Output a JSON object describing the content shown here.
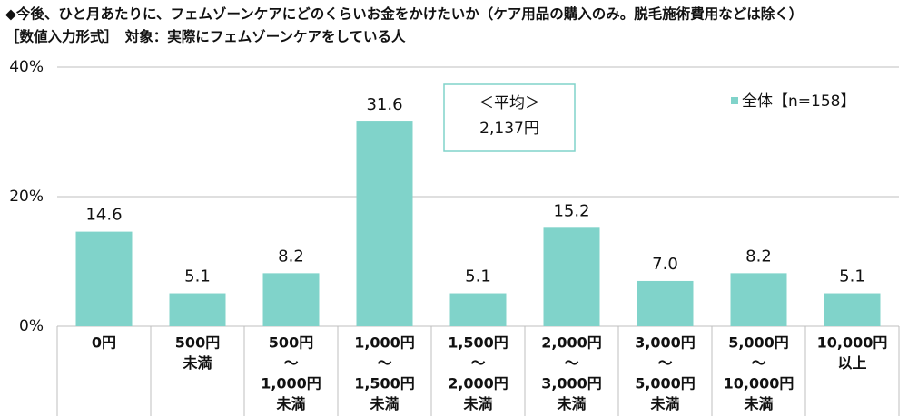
{
  "chart_data": {
    "type": "bar",
    "title": "◆今後、ひと月あたりに、フェムゾーンケアにどのくらいお金をかけたいか（ケア用品の購入のみ。脱毛施術費用などは除く）",
    "subtitle": "［数値入力形式］　対象：実際にフェムゾーンケアをしている人",
    "categories": [
      [
        "0円"
      ],
      [
        "500円",
        "未満"
      ],
      [
        "500円",
        "～",
        "1,000円",
        "未満"
      ],
      [
        "1,000円",
        "～",
        "1,500円",
        "未満"
      ],
      [
        "1,500円",
        "～",
        "2,000円",
        "未満"
      ],
      [
        "2,000円",
        "～",
        "3,000円",
        "未満"
      ],
      [
        "3,000円",
        "～",
        "5,000円",
        "未満"
      ],
      [
        "5,000円",
        "～",
        "10,000円",
        "未満"
      ],
      [
        "10,000円",
        "以上"
      ]
    ],
    "series": [
      {
        "name": "全体【n=158】",
        "color": "#80d3ca",
        "values": [
          14.6,
          5.1,
          8.2,
          31.6,
          5.1,
          15.2,
          7.0,
          8.2,
          5.1
        ],
        "value_labels": [
          "14.6",
          "5.1",
          "8.2",
          "31.6",
          "5.1",
          "15.2",
          "7.0",
          "8.2",
          "5.1"
        ]
      }
    ],
    "ylim": [
      0,
      40
    ],
    "yticks": [
      {
        "value": 0,
        "label": "0%"
      },
      {
        "value": 20,
        "label": "20%"
      },
      {
        "value": 40,
        "label": "40%"
      }
    ],
    "grid": true,
    "annotation": {
      "label": "＜平均＞",
      "value": "2,137円"
    }
  }
}
